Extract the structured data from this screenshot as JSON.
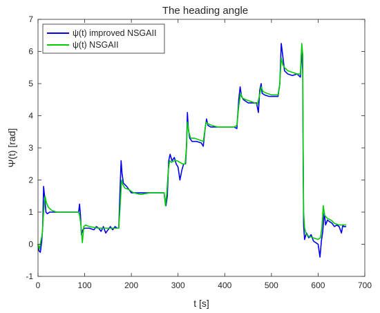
{
  "chart_data": {
    "type": "line",
    "title": "The heading angle",
    "xlabel": "t [s]",
    "ylabel": "Ψ(t) [rad]",
    "xlim": [
      0,
      700
    ],
    "ylim": [
      -1,
      7
    ],
    "xticks": [
      0,
      100,
      200,
      300,
      400,
      500,
      600,
      700
    ],
    "yticks": [
      -1,
      0,
      1,
      2,
      3,
      4,
      5,
      6,
      7
    ],
    "grid": false,
    "legend_position": "top-left",
    "series": [
      {
        "name": "ψ(t) improved NSGAII",
        "color": "#0000ee",
        "points": [
          [
            0,
            0.0
          ],
          [
            2,
            -0.2
          ],
          [
            5,
            -0.25
          ],
          [
            8,
            0.1
          ],
          [
            10,
            0.5
          ],
          [
            12,
            1.8
          ],
          [
            14,
            1.5
          ],
          [
            17,
            1.0
          ],
          [
            20,
            0.95
          ],
          [
            25,
            1.0
          ],
          [
            40,
            1.0
          ],
          [
            60,
            1.0
          ],
          [
            80,
            1.0
          ],
          [
            87,
            1.0
          ],
          [
            89,
            1.25
          ],
          [
            91,
            0.9
          ],
          [
            93,
            0.3
          ],
          [
            96,
            0.45
          ],
          [
            100,
            0.5
          ],
          [
            110,
            0.5
          ],
          [
            120,
            0.45
          ],
          [
            125,
            0.55
          ],
          [
            130,
            0.5
          ],
          [
            135,
            0.4
          ],
          [
            140,
            0.55
          ],
          [
            145,
            0.35
          ],
          [
            150,
            0.45
          ],
          [
            155,
            0.55
          ],
          [
            160,
            0.45
          ],
          [
            165,
            0.55
          ],
          [
            170,
            0.5
          ],
          [
            173,
            0.5
          ],
          [
            176,
            1.8
          ],
          [
            178,
            2.6
          ],
          [
            180,
            2.2
          ],
          [
            183,
            1.9
          ],
          [
            190,
            1.8
          ],
          [
            200,
            1.6
          ],
          [
            220,
            1.6
          ],
          [
            240,
            1.6
          ],
          [
            260,
            1.6
          ],
          [
            270,
            1.6
          ],
          [
            274,
            1.2
          ],
          [
            277,
            1.5
          ],
          [
            280,
            2.6
          ],
          [
            283,
            2.8
          ],
          [
            287,
            2.6
          ],
          [
            292,
            2.7
          ],
          [
            296,
            2.5
          ],
          [
            300,
            2.4
          ],
          [
            304,
            2.0
          ],
          [
            308,
            2.3
          ],
          [
            312,
            2.5
          ],
          [
            316,
            2.5
          ],
          [
            318,
            3.0
          ],
          [
            320,
            4.1
          ],
          [
            322,
            3.6
          ],
          [
            325,
            3.3
          ],
          [
            330,
            3.2
          ],
          [
            340,
            3.2
          ],
          [
            350,
            3.15
          ],
          [
            354,
            3.05
          ],
          [
            358,
            3.6
          ],
          [
            361,
            3.9
          ],
          [
            364,
            3.7
          ],
          [
            370,
            3.65
          ],
          [
            380,
            3.65
          ],
          [
            400,
            3.65
          ],
          [
            420,
            3.65
          ],
          [
            426,
            3.6
          ],
          [
            430,
            4.5
          ],
          [
            433,
            4.9
          ],
          [
            436,
            4.6
          ],
          [
            440,
            4.5
          ],
          [
            450,
            4.4
          ],
          [
            460,
            4.4
          ],
          [
            468,
            4.4
          ],
          [
            472,
            4.1
          ],
          [
            475,
            4.8
          ],
          [
            478,
            5.0
          ],
          [
            480,
            4.7
          ],
          [
            485,
            4.65
          ],
          [
            495,
            4.6
          ],
          [
            505,
            4.6
          ],
          [
            514,
            4.6
          ],
          [
            518,
            5.0
          ],
          [
            521,
            6.25
          ],
          [
            524,
            5.9
          ],
          [
            528,
            5.4
          ],
          [
            535,
            5.3
          ],
          [
            545,
            5.25
          ],
          [
            555,
            5.3
          ],
          [
            562,
            5.2
          ],
          [
            565,
            6.1
          ],
          [
            567,
            5.3
          ],
          [
            568,
            2.5
          ],
          [
            569,
            0.6
          ],
          [
            571,
            0.15
          ],
          [
            575,
            0.35
          ],
          [
            580,
            0.2
          ],
          [
            585,
            0.3
          ],
          [
            590,
            0.1
          ],
          [
            595,
            0.05
          ],
          [
            600,
            0.0
          ],
          [
            604,
            -0.4
          ],
          [
            607,
            0.1
          ],
          [
            610,
            0.4
          ],
          [
            613,
            1.0
          ],
          [
            616,
            0.6
          ],
          [
            620,
            0.75
          ],
          [
            625,
            0.7
          ],
          [
            630,
            0.65
          ],
          [
            635,
            0.55
          ],
          [
            640,
            0.6
          ],
          [
            645,
            0.55
          ],
          [
            650,
            0.35
          ],
          [
            653,
            0.6
          ],
          [
            655,
            0.55
          ],
          [
            660,
            0.55
          ]
        ]
      },
      {
        "name": "ψ(t) NSGAII",
        "color": "#00cc00",
        "points": [
          [
            0,
            0.0
          ],
          [
            3,
            -0.15
          ],
          [
            6,
            0.1
          ],
          [
            9,
            0.3
          ],
          [
            12,
            1.0
          ],
          [
            15,
            1.5
          ],
          [
            18,
            1.3
          ],
          [
            22,
            1.15
          ],
          [
            30,
            1.05
          ],
          [
            40,
            1.0
          ],
          [
            60,
            1.0
          ],
          [
            80,
            1.0
          ],
          [
            87,
            1.0
          ],
          [
            89,
            0.9
          ],
          [
            92,
            0.6
          ],
          [
            95,
            0.05
          ],
          [
            98,
            0.55
          ],
          [
            102,
            0.6
          ],
          [
            110,
            0.55
          ],
          [
            130,
            0.5
          ],
          [
            150,
            0.5
          ],
          [
            165,
            0.5
          ],
          [
            173,
            0.5
          ],
          [
            176,
            1.2
          ],
          [
            179,
            2.0
          ],
          [
            182,
            1.85
          ],
          [
            186,
            1.75
          ],
          [
            195,
            1.7
          ],
          [
            205,
            1.6
          ],
          [
            220,
            1.55
          ],
          [
            240,
            1.6
          ],
          [
            260,
            1.6
          ],
          [
            270,
            1.6
          ],
          [
            273,
            1.2
          ],
          [
            276,
            1.6
          ],
          [
            279,
            2.3
          ],
          [
            282,
            2.6
          ],
          [
            286,
            2.55
          ],
          [
            292,
            2.6
          ],
          [
            298,
            2.6
          ],
          [
            304,
            2.55
          ],
          [
            310,
            2.5
          ],
          [
            315,
            2.5
          ],
          [
            318,
            3.0
          ],
          [
            320,
            3.8
          ],
          [
            323,
            3.5
          ],
          [
            327,
            3.3
          ],
          [
            335,
            3.3
          ],
          [
            345,
            3.25
          ],
          [
            354,
            3.2
          ],
          [
            357,
            3.5
          ],
          [
            360,
            3.8
          ],
          [
            364,
            3.75
          ],
          [
            372,
            3.7
          ],
          [
            385,
            3.65
          ],
          [
            400,
            3.65
          ],
          [
            420,
            3.65
          ],
          [
            426,
            3.7
          ],
          [
            430,
            4.3
          ],
          [
            434,
            4.7
          ],
          [
            438,
            4.55
          ],
          [
            445,
            4.5
          ],
          [
            455,
            4.45
          ],
          [
            465,
            4.4
          ],
          [
            470,
            4.35
          ],
          [
            474,
            4.6
          ],
          [
            478,
            4.9
          ],
          [
            482,
            4.75
          ],
          [
            490,
            4.7
          ],
          [
            500,
            4.65
          ],
          [
            514,
            4.65
          ],
          [
            518,
            5.0
          ],
          [
            521,
            5.8
          ],
          [
            524,
            5.6
          ],
          [
            528,
            5.5
          ],
          [
            535,
            5.4
          ],
          [
            545,
            5.35
          ],
          [
            555,
            5.3
          ],
          [
            562,
            5.3
          ],
          [
            565,
            6.25
          ],
          [
            567,
            5.9
          ],
          [
            568,
            3.0
          ],
          [
            569,
            1.0
          ],
          [
            571,
            0.5
          ],
          [
            575,
            0.3
          ],
          [
            580,
            0.25
          ],
          [
            590,
            0.2
          ],
          [
            600,
            0.15
          ],
          [
            605,
            0.2
          ],
          [
            608,
            0.5
          ],
          [
            611,
            1.2
          ],
          [
            614,
            0.9
          ],
          [
            620,
            0.8
          ],
          [
            628,
            0.75
          ],
          [
            635,
            0.65
          ],
          [
            645,
            0.6
          ],
          [
            655,
            0.6
          ],
          [
            660,
            0.6
          ]
        ]
      }
    ]
  }
}
